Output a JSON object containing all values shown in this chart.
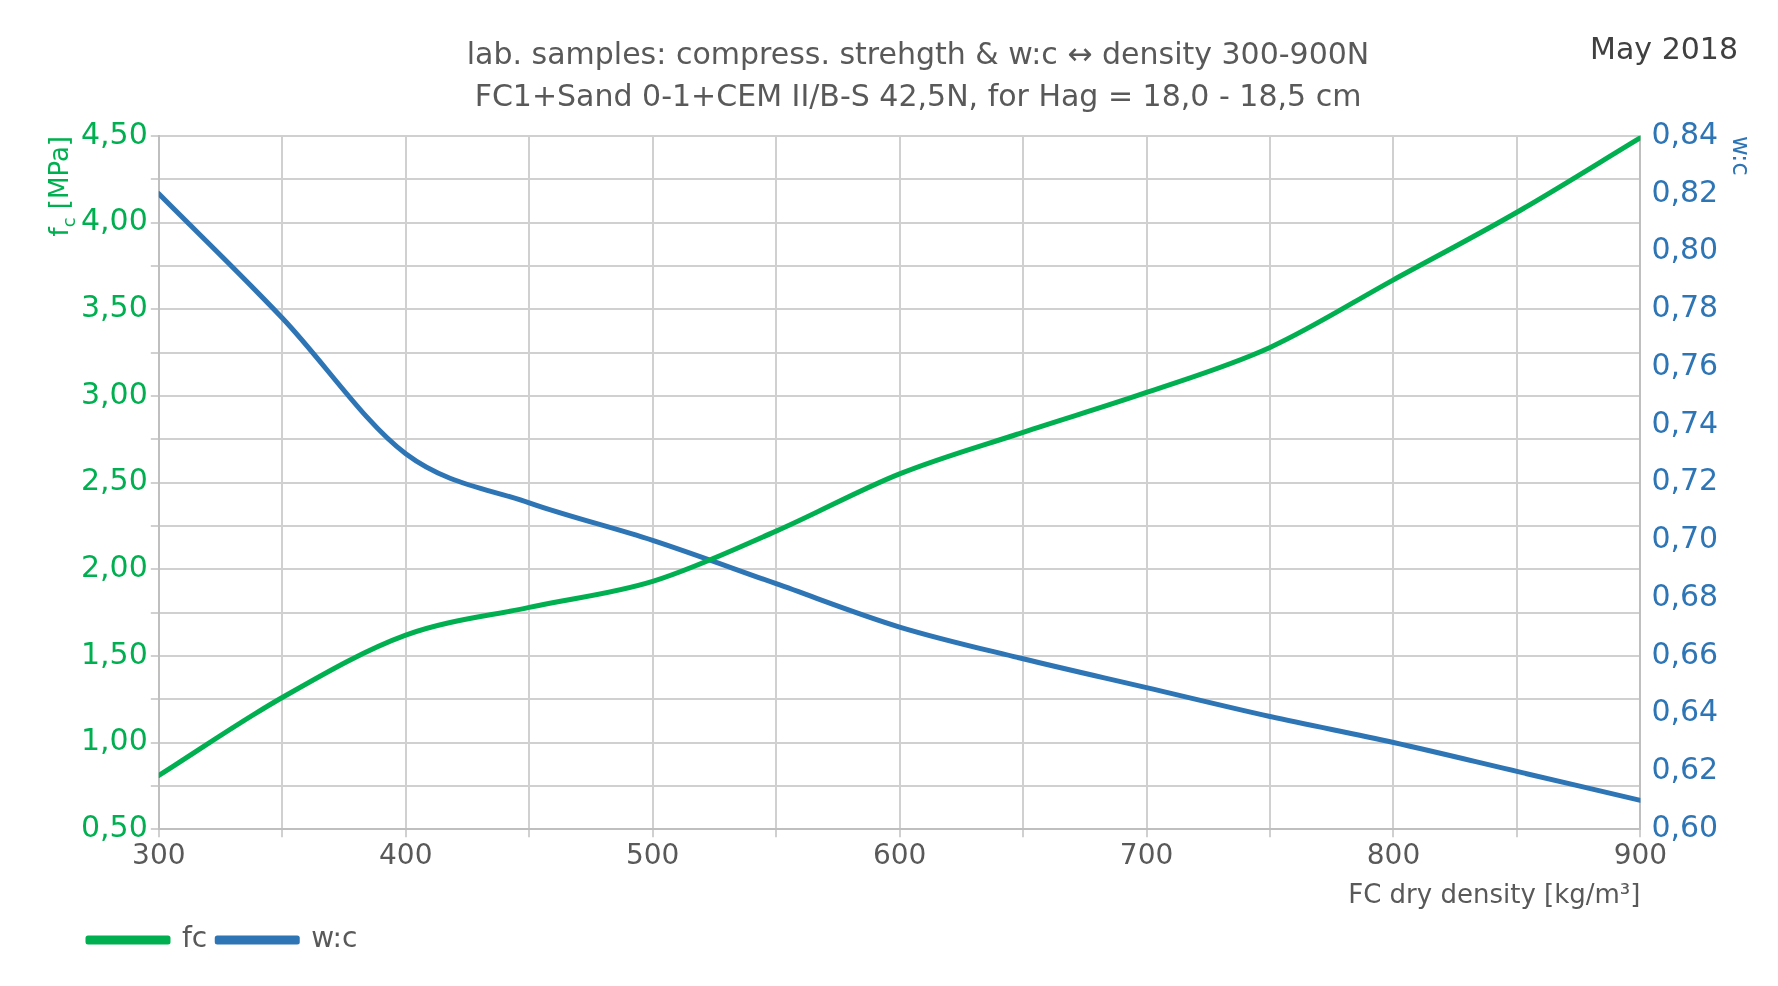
{
  "chart_data": {
    "type": "line",
    "title": "lab. samples: compress. strehgth & w:c ↔ density 300-900N",
    "subtitle": "FC1+Sand 0-1+CEM II/B-S 42,5N, for Hag = 18,0 - 18,5 cm",
    "xlabel": "FC dry density [kg/m³]",
    "ylabel": "f$_{c}$ [MPa]",
    "y2label": "w:c",
    "annotations": [
      "May 2018"
    ],
    "x": [
      300,
      350,
      400,
      450,
      500,
      550,
      600,
      650,
      700,
      750,
      800,
      850,
      900
    ],
    "series": [
      {
        "name": "fc",
        "color": "#00b050",
        "values": [
          0.81,
          1.26,
          1.62,
          1.78,
          1.93,
          2.22,
          2.55,
          2.79,
          3.02,
          3.28,
          3.67,
          4.06,
          4.49
        ]
      },
      {
        "name": "w:c",
        "color": "#2e75b6",
        "axis": "y2",
        "values": [
          0.82,
          0.777,
          0.73,
          0.713,
          0.7,
          0.685,
          0.67,
          0.659,
          0.649,
          0.639,
          0.63,
          0.62,
          0.61
        ]
      }
    ],
    "xlim": [
      300,
      900
    ],
    "xticks": [
      300,
      {
        "value": 350,
        "label": null
      },
      400,
      {
        "value": 450,
        "label": null
      },
      500,
      {
        "value": 550,
        "label": null
      },
      600,
      {
        "value": 650,
        "label": null
      },
      700,
      {
        "value": 750,
        "label": null
      },
      800,
      {
        "value": 850,
        "label": null
      },
      900
    ],
    "ylim": [
      0.5,
      4.5
    ],
    "yticks": [
      {
        "value": 0.5,
        "label": "0,50"
      },
      {
        "value": 0.75,
        "label": null
      },
      {
        "value": 1,
        "label": "1,00"
      },
      {
        "value": 1.25,
        "label": null
      },
      {
        "value": 1.5,
        "label": "1,50"
      },
      {
        "value": 1.75,
        "label": null
      },
      {
        "value": 2,
        "label": "2,00"
      },
      {
        "value": 2.25,
        "label": null
      },
      {
        "value": 2.5,
        "label": "2,50"
      },
      {
        "value": 2.75,
        "label": null
      },
      {
        "value": 3,
        "label": "3,00"
      },
      {
        "value": 3.25,
        "label": null
      },
      {
        "value": 3.5,
        "label": "3,50"
      },
      {
        "value": 3.75,
        "label": null
      },
      {
        "value": 4,
        "label": "4,00"
      },
      {
        "value": 4.25,
        "label": null
      },
      {
        "value": 4.5,
        "label": "4,50"
      }
    ],
    "y2lim": [
      0.6,
      0.84
    ],
    "y2ticks": [
      {
        "value": 0.6,
        "label": "0,60"
      },
      {
        "value": 0.62,
        "label": "0,62"
      },
      {
        "value": 0.64,
        "label": "0,64"
      },
      {
        "value": 0.66,
        "label": "0,66"
      },
      {
        "value": 0.68,
        "label": "0,68"
      },
      {
        "value": 0.7,
        "label": "0,70"
      },
      {
        "value": 0.72,
        "label": "0,72"
      },
      {
        "value": 0.74,
        "label": "0,74"
      },
      {
        "value": 0.76,
        "label": "0,76"
      },
      {
        "value": 0.78,
        "label": "0,78"
      },
      {
        "value": 0.8,
        "label": "0,80"
      },
      {
        "value": 0.82,
        "label": "0,82"
      },
      {
        "value": 0.84,
        "label": "0,84"
      }
    ],
    "grid": true,
    "legend": "bottom left",
    "marker": "none",
    "line_style": "solid"
  }
}
